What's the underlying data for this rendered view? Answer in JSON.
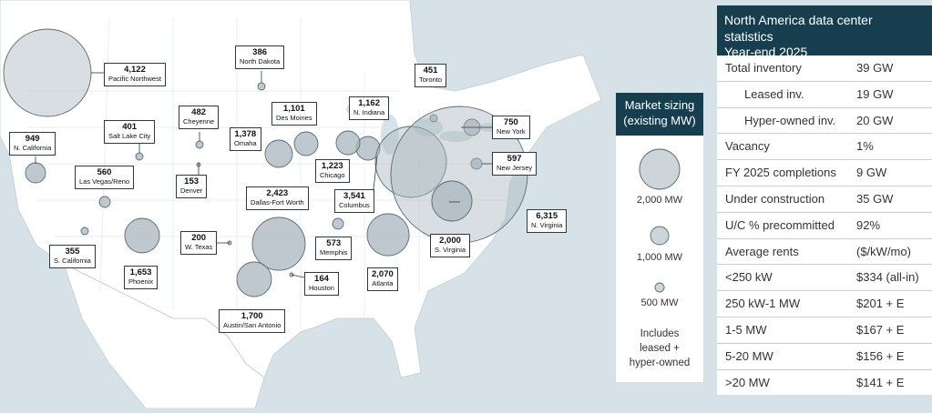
{
  "map": {
    "markets": [
      {
        "id": "pacific-northwest",
        "name": "Pacific Northwest",
        "value": "4,122"
      },
      {
        "id": "north-dakota",
        "name": "North Dakota",
        "value": "386"
      },
      {
        "id": "n-california",
        "name": "N. California",
        "value": "949"
      },
      {
        "id": "salt-lake-city",
        "name": "Salt Lake City",
        "value": "401"
      },
      {
        "id": "cheyenne",
        "name": "Cheyenne",
        "value": "482"
      },
      {
        "id": "omaha",
        "name": "Omaha",
        "value": "1,378"
      },
      {
        "id": "des-moines",
        "name": "Des Moines",
        "value": "1,101"
      },
      {
        "id": "n-indiana",
        "name": "N. Indiana",
        "value": "1,162"
      },
      {
        "id": "toronto",
        "name": "Toronto",
        "value": "451"
      },
      {
        "id": "new-york",
        "name": "New York",
        "value": "750"
      },
      {
        "id": "new-jersey",
        "name": "New Jersey",
        "value": "597"
      },
      {
        "id": "chicago",
        "name": "Chicago",
        "value": "1,223"
      },
      {
        "id": "columbus",
        "name": "Columbus",
        "value": "3,541"
      },
      {
        "id": "las-vegas-reno",
        "name": "Las Vegas/Reno",
        "value": "560"
      },
      {
        "id": "denver",
        "name": "Denver",
        "value": "153"
      },
      {
        "id": "dallas-fort-worth",
        "name": "Dallas-Fort Worth",
        "value": "2,423"
      },
      {
        "id": "n-virginia",
        "name": "N. Virginia",
        "value": "6,315"
      },
      {
        "id": "s-virginia",
        "name": "S. Virginia",
        "value": "2,000"
      },
      {
        "id": "w-texas",
        "name": "W. Texas",
        "value": "200"
      },
      {
        "id": "memphis",
        "name": "Memphis",
        "value": "573"
      },
      {
        "id": "s-california",
        "name": "S. California",
        "value": "355"
      },
      {
        "id": "phoenix",
        "name": "Phoenix",
        "value": "1,653"
      },
      {
        "id": "houston",
        "name": "Houston",
        "value": "164"
      },
      {
        "id": "atlanta",
        "name": "Atlanta",
        "value": "2,070"
      },
      {
        "id": "austin-san-antonio",
        "name": "Austin/San Antonio",
        "value": "1,700"
      }
    ]
  },
  "legend": {
    "title_line1": "Market sizing",
    "title_line2": "(existing MW)",
    "items": [
      {
        "label": "2,000 MW",
        "value": 2000
      },
      {
        "label": "1,000 MW",
        "value": 1000
      },
      {
        "label": "500 MW",
        "value": 500
      }
    ],
    "note_line1": "Includes",
    "note_line2": "leased +",
    "note_line3": "hyper-owned"
  },
  "stats": {
    "title_line1": "North America data center statistics",
    "title_line2": "Year-end 2025",
    "rows": [
      {
        "label": "Total inventory",
        "value": "39 GW",
        "indent": false
      },
      {
        "label": "Leased inv.",
        "value": "19 GW",
        "indent": true
      },
      {
        "label": "Hyper-owned inv.",
        "value": "20 GW",
        "indent": true
      },
      {
        "label": "Vacancy",
        "value": "1%",
        "indent": false
      },
      {
        "label": "FY 2025 completions",
        "value": "9 GW",
        "indent": false
      },
      {
        "label": "Under construction",
        "value": "35 GW",
        "indent": false
      },
      {
        "label": "U/C % precommitted",
        "value": "92%",
        "indent": false
      },
      {
        "label": "Average rents",
        "value": "($/kW/mo)",
        "indent": false
      },
      {
        "label": "<250 kW",
        "value": "$334 (all-in)",
        "indent": false
      },
      {
        "label": "250 kW-1 MW",
        "value": "$201 + E",
        "indent": false
      },
      {
        "label": "1-5 MW",
        "value": "$167 + E",
        "indent": false
      },
      {
        "label": "5-20 MW",
        "value": "$156 + E",
        "indent": false
      },
      {
        "label": ">20 MW",
        "value": "$141 + E",
        "indent": false
      }
    ]
  },
  "colors": {
    "land": "#ffffff",
    "water": "#d6e2e8",
    "bubble": "#a9b6bd",
    "bubble_stroke": "#5a6a73",
    "header": "#173e4e"
  }
}
